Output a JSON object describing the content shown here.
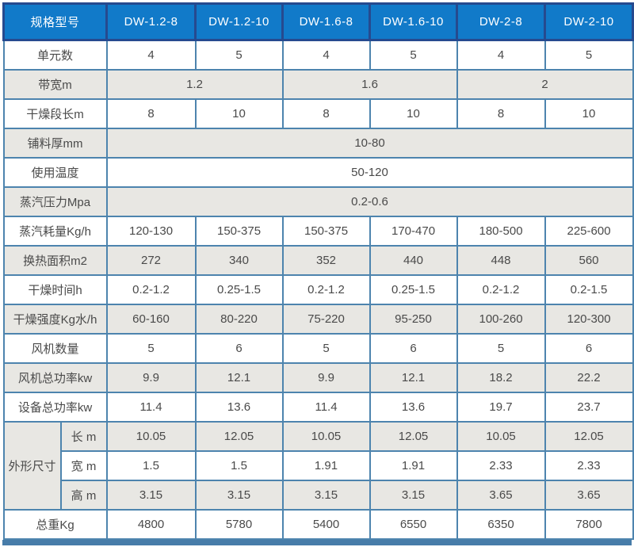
{
  "colors": {
    "header_bg": "#117ac9",
    "header_border": "#264a8f",
    "header_text": "#ffffff",
    "grid_border": "#4d84ae",
    "stripe_bg": "#e8e7e3",
    "cell_bg": "#ffffff",
    "text": "#4a4a4a",
    "bottom_bar": "#477ca9"
  },
  "table": {
    "header": {
      "label": "规格型号",
      "models": [
        "DW-1.2-8",
        "DW-1.2-10",
        "DW-1.6-8",
        "DW-1.6-10",
        "DW-2-8",
        "DW-2-10"
      ]
    },
    "rows": [
      {
        "label": "单元数",
        "cells": [
          {
            "t": "4"
          },
          {
            "t": "5"
          },
          {
            "t": "4"
          },
          {
            "t": "5"
          },
          {
            "t": "4"
          },
          {
            "t": "5"
          }
        ]
      },
      {
        "label": "带宽m",
        "cells": [
          {
            "t": "1.2",
            "span": 2
          },
          {
            "t": "1.6",
            "span": 2
          },
          {
            "t": "2",
            "span": 2
          }
        ]
      },
      {
        "label": "干燥段长m",
        "cells": [
          {
            "t": "8"
          },
          {
            "t": "10"
          },
          {
            "t": "8"
          },
          {
            "t": "10"
          },
          {
            "t": "8"
          },
          {
            "t": "10"
          }
        ]
      },
      {
        "label": "铺料厚mm",
        "cells": [
          {
            "t": "10-80",
            "span": 6
          }
        ]
      },
      {
        "label": "使用温度",
        "cells": [
          {
            "t": "50-120",
            "span": 6
          }
        ]
      },
      {
        "label": "蒸汽压力Mpa",
        "cells": [
          {
            "t": "0.2-0.6",
            "span": 6
          }
        ]
      },
      {
        "label": "蒸汽耗量Kg/h",
        "cells": [
          {
            "t": "120-130"
          },
          {
            "t": "150-375"
          },
          {
            "t": "150-375"
          },
          {
            "t": "170-470"
          },
          {
            "t": "180-500"
          },
          {
            "t": "225-600"
          }
        ]
      },
      {
        "label": "换热面积m2",
        "cells": [
          {
            "t": "272"
          },
          {
            "t": "340"
          },
          {
            "t": "352"
          },
          {
            "t": "440"
          },
          {
            "t": "448"
          },
          {
            "t": "560"
          }
        ]
      },
      {
        "label": "干燥时间h",
        "cells": [
          {
            "t": "0.2-1.2"
          },
          {
            "t": "0.25-1.5"
          },
          {
            "t": "0.2-1.2"
          },
          {
            "t": "0.25-1.5"
          },
          {
            "t": "0.2-1.2"
          },
          {
            "t": "0.2-1.5"
          }
        ]
      },
      {
        "label": "干燥强度Kg水/h",
        "cells": [
          {
            "t": "60-160"
          },
          {
            "t": "80-220"
          },
          {
            "t": "75-220"
          },
          {
            "t": "95-250"
          },
          {
            "t": "100-260"
          },
          {
            "t": "120-300"
          }
        ]
      },
      {
        "label": "风机数量",
        "cells": [
          {
            "t": "5"
          },
          {
            "t": "6"
          },
          {
            "t": "5"
          },
          {
            "t": "6"
          },
          {
            "t": "5"
          },
          {
            "t": "6"
          }
        ]
      },
      {
        "label": "风机总功率kw",
        "cells": [
          {
            "t": "9.9"
          },
          {
            "t": "12.1"
          },
          {
            "t": "9.9"
          },
          {
            "t": "12.1"
          },
          {
            "t": "18.2"
          },
          {
            "t": "22.2"
          }
        ]
      },
      {
        "label": "设备总功率kw",
        "cells": [
          {
            "t": "11.4"
          },
          {
            "t": "13.6"
          },
          {
            "t": "11.4"
          },
          {
            "t": "13.6"
          },
          {
            "t": "19.7"
          },
          {
            "t": "23.7"
          }
        ]
      },
      {
        "group": "外形尺寸",
        "group_span": 3,
        "label": "长 m",
        "cells": [
          {
            "t": "10.05"
          },
          {
            "t": "12.05"
          },
          {
            "t": "10.05"
          },
          {
            "t": "12.05"
          },
          {
            "t": "10.05"
          },
          {
            "t": "12.05"
          }
        ]
      },
      {
        "in_group": true,
        "label": "宽 m",
        "cells": [
          {
            "t": "1.5"
          },
          {
            "t": "1.5"
          },
          {
            "t": "1.91"
          },
          {
            "t": "1.91"
          },
          {
            "t": "2.33"
          },
          {
            "t": "2.33"
          }
        ]
      },
      {
        "in_group": true,
        "label": "高 m",
        "cells": [
          {
            "t": "3.15"
          },
          {
            "t": "3.15"
          },
          {
            "t": "3.15"
          },
          {
            "t": "3.15"
          },
          {
            "t": "3.65"
          },
          {
            "t": "3.65"
          }
        ]
      },
      {
        "label": "总重Kg",
        "cells": [
          {
            "t": "4800"
          },
          {
            "t": "5780"
          },
          {
            "t": "5400"
          },
          {
            "t": "6550"
          },
          {
            "t": "6350"
          },
          {
            "t": "7800"
          }
        ]
      }
    ]
  }
}
